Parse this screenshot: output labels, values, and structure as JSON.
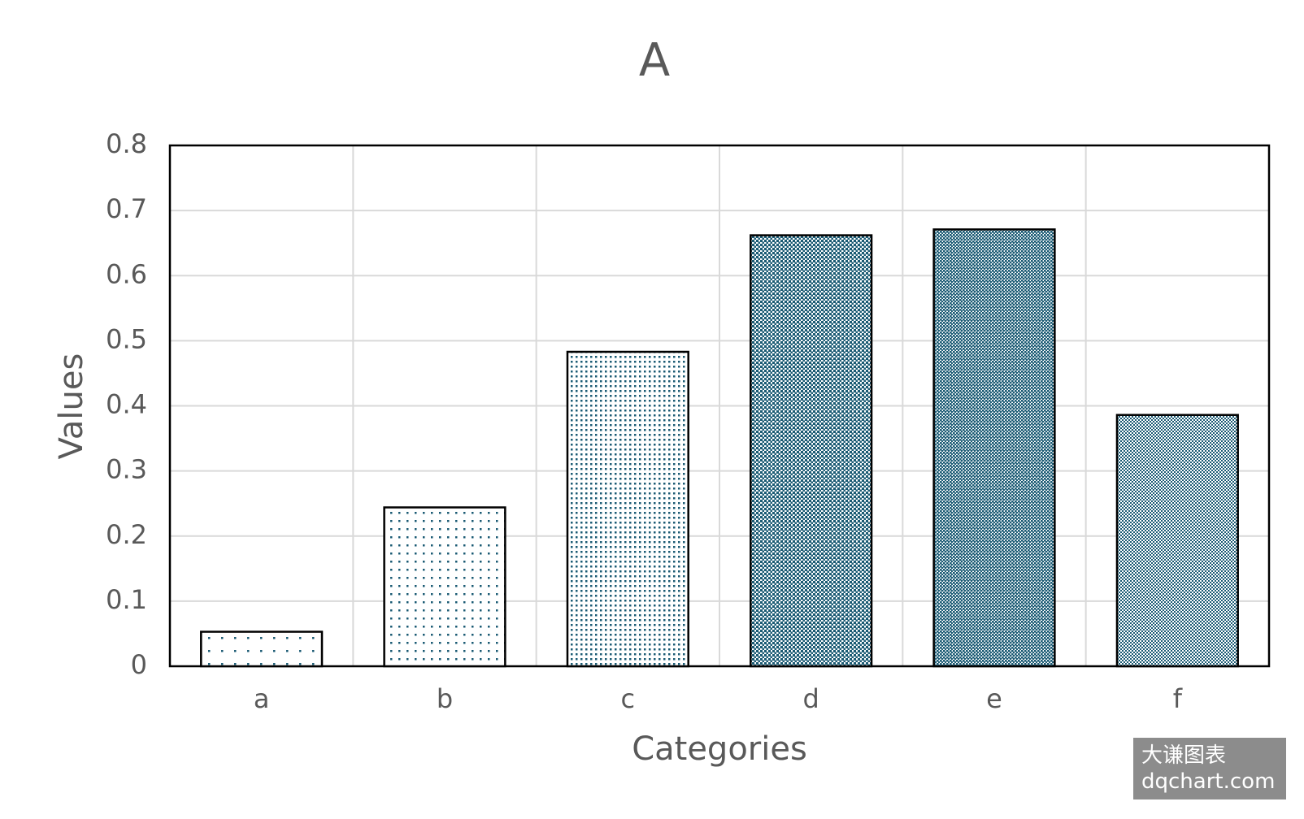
{
  "chart_data": {
    "type": "bar",
    "title": "A",
    "x_label": "Categories",
    "y_label": "Values",
    "categories": [
      "a",
      "b",
      "c",
      "d",
      "e",
      "f"
    ],
    "values": [
      0.053,
      0.244,
      0.483,
      0.662,
      0.671,
      0.386
    ],
    "color": "#1b5b74",
    "ylim": [
      0,
      0.8
    ],
    "yticks": [
      0,
      0.1,
      0.2,
      0.3,
      0.4,
      0.5,
      0.6,
      0.7,
      0.8
    ],
    "grid": true
  },
  "watermark": {
    "line1": "大谦图表",
    "line2": "dqchart.com"
  }
}
